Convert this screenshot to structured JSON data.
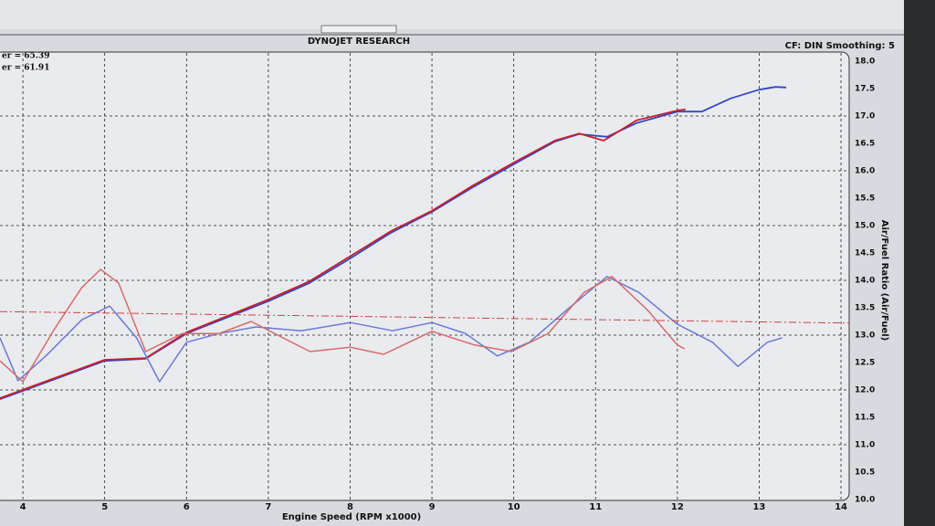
{
  "chart_data": {
    "type": "line",
    "title": "DYNOJET RESEARCH",
    "subtitle": "CF: DIN  Smoothing: 5",
    "annotations": [
      "er = 65.39",
      "er = 61.91"
    ],
    "x_label": "Engine Speed (RPM x1000)",
    "y_label": "Air/Fuel Ratio (Air/Fuel)",
    "xlim": [
      3.72,
      14.1
    ],
    "ylim": [
      10,
      18
    ],
    "xticks": [
      4,
      5,
      6,
      7,
      8,
      9,
      10,
      11,
      12,
      13,
      14
    ],
    "yticks": [
      {
        "value": 10,
        "label": "10.0"
      },
      10.5,
      {
        "value": 11,
        "label": "11.0"
      },
      11.5,
      {
        "value": 12,
        "label": "12.0"
      },
      12.5,
      {
        "value": 13,
        "label": "13.0"
      },
      13.5,
      {
        "value": 14,
        "label": "14.0"
      },
      14.5,
      {
        "value": 15,
        "label": "15.0"
      },
      15.5,
      {
        "value": 16,
        "label": "16.0"
      },
      16.5,
      {
        "value": 17,
        "label": "17.0"
      },
      17.5,
      {
        "value": 18,
        "label": "18.0"
      }
    ],
    "grid": true,
    "series": [
      {
        "color": "#3347c8",
        "width": 1.8,
        "x": [
          3.72,
          5,
          5.5,
          6,
          7,
          7.5,
          8,
          8.5,
          9,
          9.5,
          10,
          10.5,
          10.8,
          11.14,
          11.5,
          12,
          12.3,
          12.65,
          13,
          13.2,
          13.33
        ],
        "values": [
          11.83,
          12.53,
          12.57,
          13.03,
          13.62,
          13.95,
          14.4,
          14.87,
          15.25,
          15.7,
          16.12,
          16.53,
          16.67,
          16.62,
          16.87,
          17.08,
          17.08,
          17.32,
          17.48,
          17.53,
          17.52
        ]
      },
      {
        "color": "#cc1f2a",
        "width": 1.8,
        "x": [
          3.72,
          5,
          5.5,
          6,
          7,
          7.5,
          8,
          8.5,
          9,
          9.5,
          10,
          10.5,
          10.8,
          11.1,
          11.5,
          12,
          12.1
        ],
        "values": [
          11.85,
          12.55,
          12.58,
          13.05,
          13.65,
          13.98,
          14.44,
          14.9,
          15.27,
          15.73,
          16.15,
          16.55,
          16.68,
          16.55,
          16.92,
          17.1,
          17.12
        ]
      },
      {
        "color": "#6a7ad8",
        "width": 1.5,
        "x": [
          3.72,
          3.94,
          4.28,
          4.72,
          5.06,
          5.39,
          5.67,
          6,
          6.4,
          6.85,
          7.4,
          8,
          8.52,
          9,
          9.41,
          9.8,
          10.19,
          10.64,
          11.14,
          11.53,
          12,
          12.43,
          12.74,
          13.1,
          13.28
        ],
        "values": [
          12.95,
          12.17,
          12.62,
          13.28,
          13.53,
          12.95,
          12.15,
          12.87,
          13.03,
          13.15,
          13.08,
          13.23,
          13.08,
          13.23,
          13.03,
          12.62,
          12.87,
          13.45,
          14.07,
          13.78,
          13.2,
          12.87,
          12.43,
          12.87,
          12.95
        ]
      },
      {
        "color": "#d86a6a",
        "width": 1.5,
        "x": [
          3.72,
          4,
          4.39,
          4.72,
          4.95,
          5.17,
          5.5,
          5.95,
          6.4,
          6.79,
          7.18,
          7.51,
          8,
          8.41,
          9,
          9.52,
          9.97,
          10.42,
          10.86,
          11.2,
          11.64,
          12,
          12.09
        ],
        "values": [
          12.53,
          12.15,
          13.12,
          13.87,
          14.2,
          13.95,
          12.7,
          13.03,
          13.03,
          13.25,
          12.95,
          12.7,
          12.78,
          12.65,
          13.07,
          12.82,
          12.7,
          13.03,
          13.78,
          14.07,
          13.45,
          12.82,
          12.75
        ]
      },
      {
        "color": "#d04040",
        "width": 1,
        "dash": "8 3 2 3",
        "x": [
          3.72,
          14.1
        ],
        "values": [
          13.43,
          13.22
        ]
      }
    ]
  }
}
